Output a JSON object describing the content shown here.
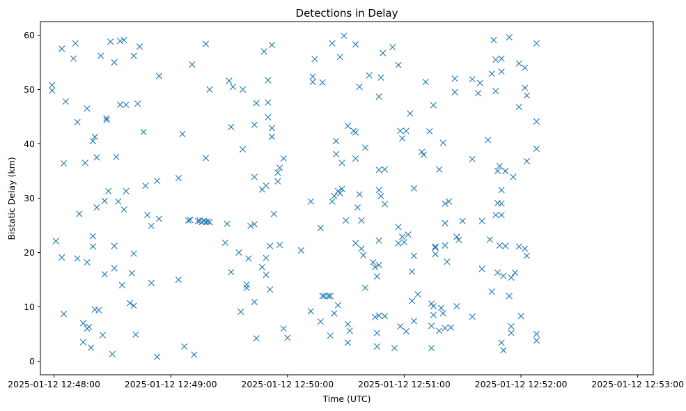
{
  "chart_data": {
    "type": "scatter",
    "title": "Detections in Delay",
    "xlabel": "Time (UTC)",
    "ylabel": "Bistatic Delay (km)",
    "xlim": [
      "2025-01-12 12:47:53",
      "2025-01-12 12:53:08"
    ],
    "ylim": [
      -2.5,
      62.5
    ],
    "xticks": [
      "2025-01-12 12:48:00",
      "2025-01-12 12:49:00",
      "2025-01-12 12:50:00",
      "2025-01-12 12:51:00",
      "2025-01-12 12:52:00",
      "2025-01-12 12:53:00"
    ],
    "yticks": [
      0,
      10,
      20,
      30,
      40,
      50,
      60
    ],
    "grid": false,
    "marker": "x",
    "color": "#1f77b4",
    "points": [
      [
        "2025-01-12 12:47:59",
        50.8
      ],
      [
        "2025-01-12 12:47:59",
        49.8
      ],
      [
        "2025-01-12 12:48:01",
        22.1
      ],
      [
        "2025-01-12 12:48:04",
        57.5
      ],
      [
        "2025-01-12 12:48:04",
        19.1
      ],
      [
        "2025-01-12 12:48:05",
        36.4
      ],
      [
        "2025-01-12 12:48:05",
        8.7
      ],
      [
        "2025-01-12 12:48:06",
        47.8
      ],
      [
        "2025-01-12 12:48:10",
        55.7
      ],
      [
        "2025-01-12 12:48:11",
        58.5
      ],
      [
        "2025-01-12 12:48:12",
        44.0
      ],
      [
        "2025-01-12 12:48:12",
        18.9
      ],
      [
        "2025-01-12 12:48:13",
        27.1
      ],
      [
        "2025-01-12 12:48:15",
        7.0
      ],
      [
        "2025-01-12 12:48:15",
        3.5
      ],
      [
        "2025-01-12 12:48:16",
        36.5
      ],
      [
        "2025-01-12 12:48:17",
        46.5
      ],
      [
        "2025-01-12 12:48:17",
        18.2
      ],
      [
        "2025-01-12 12:48:17",
        6.0
      ],
      [
        "2025-01-12 12:48:18",
        6.3
      ],
      [
        "2025-01-12 12:48:19",
        2.5
      ],
      [
        "2025-01-12 12:48:20",
        40.5
      ],
      [
        "2025-01-12 12:48:20",
        21.1
      ],
      [
        "2025-01-12 12:48:20",
        23.0
      ],
      [
        "2025-01-12 12:48:21",
        41.3
      ],
      [
        "2025-01-12 12:48:21",
        9.5
      ],
      [
        "2025-01-12 12:48:22",
        37.5
      ],
      [
        "2025-01-12 12:48:22",
        28.3
      ],
      [
        "2025-01-12 12:48:23",
        9.4
      ],
      [
        "2025-01-12 12:48:24",
        56.2
      ],
      [
        "2025-01-12 12:48:25",
        4.8
      ],
      [
        "2025-01-12 12:48:26",
        16.0
      ],
      [
        "2025-01-12 12:48:26",
        29.5
      ],
      [
        "2025-01-12 12:48:27",
        44.7
      ],
      [
        "2025-01-12 12:48:27",
        44.4
      ],
      [
        "2025-01-12 12:48:28",
        31.3
      ],
      [
        "2025-01-12 12:48:29",
        58.8
      ],
      [
        "2025-01-12 12:48:30",
        1.3
      ],
      [
        "2025-01-12 12:48:31",
        55.0
      ],
      [
        "2025-01-12 12:48:31",
        21.2
      ],
      [
        "2025-01-12 12:48:31",
        17.1
      ],
      [
        "2025-01-12 12:48:32",
        37.6
      ],
      [
        "2025-01-12 12:48:33",
        29.4
      ],
      [
        "2025-01-12 12:48:34",
        58.9
      ],
      [
        "2025-01-12 12:48:34",
        47.2
      ],
      [
        "2025-01-12 12:48:35",
        14.0
      ],
      [
        "2025-01-12 12:48:36",
        59.1
      ],
      [
        "2025-01-12 12:48:36",
        27.9
      ],
      [
        "2025-01-12 12:48:37",
        47.2
      ],
      [
        "2025-01-12 12:48:37",
        31.3
      ],
      [
        "2025-01-12 12:48:39",
        10.7
      ],
      [
        "2025-01-12 12:48:40",
        16.2
      ],
      [
        "2025-01-12 12:48:41",
        56.2
      ],
      [
        "2025-01-12 12:48:41",
        19.8
      ],
      [
        "2025-01-12 12:48:41",
        10.2
      ],
      [
        "2025-01-12 12:48:42",
        4.9
      ],
      [
        "2025-01-12 12:48:43",
        47.4
      ],
      [
        "2025-01-12 12:48:44",
        57.9
      ],
      [
        "2025-01-12 12:48:46",
        42.2
      ],
      [
        "2025-01-12 12:48:47",
        32.3
      ],
      [
        "2025-01-12 12:48:48",
        26.9
      ],
      [
        "2025-01-12 12:48:50",
        24.9
      ],
      [
        "2025-01-12 12:48:50",
        14.4
      ],
      [
        "2025-01-12 12:48:53",
        33.2
      ],
      [
        "2025-01-12 12:48:53",
        0.8
      ],
      [
        "2025-01-12 12:48:54",
        52.5
      ],
      [
        "2025-01-12 12:48:54",
        26.2
      ],
      [
        "2025-01-12 12:49:04",
        33.7
      ],
      [
        "2025-01-12 12:49:04",
        15.0
      ],
      [
        "2025-01-12 12:49:06",
        41.8
      ],
      [
        "2025-01-12 12:49:07",
        2.7
      ],
      [
        "2025-01-12 12:49:09",
        25.9
      ],
      [
        "2025-01-12 12:49:10",
        26.0
      ],
      [
        "2025-01-12 12:49:11",
        54.6
      ],
      [
        "2025-01-12 12:49:12",
        1.2
      ],
      [
        "2025-01-12 12:49:14",
        25.8
      ],
      [
        "2025-01-12 12:49:15",
        25.9
      ],
      [
        "2025-01-12 12:49:16",
        25.6
      ],
      [
        "2025-01-12 12:49:17",
        25.8
      ],
      [
        "2025-01-12 12:49:18",
        25.6
      ],
      [
        "2025-01-12 12:49:19",
        25.7
      ],
      [
        "2025-01-12 12:49:20",
        25.6
      ],
      [
        "2025-01-12 12:49:18",
        58.4
      ],
      [
        "2025-01-12 12:49:18",
        37.4
      ],
      [
        "2025-01-12 12:49:20",
        50.0
      ],
      [
        "2025-01-12 12:49:28",
        21.8
      ],
      [
        "2025-01-12 12:49:29",
        25.3
      ],
      [
        "2025-01-12 12:49:30",
        51.6
      ],
      [
        "2025-01-12 12:49:31",
        43.1
      ],
      [
        "2025-01-12 12:49:31",
        16.4
      ],
      [
        "2025-01-12 12:49:32",
        50.5
      ],
      [
        "2025-01-12 12:49:35",
        20.0
      ],
      [
        "2025-01-12 12:49:36",
        9.1
      ],
      [
        "2025-01-12 12:49:37",
        50.0
      ],
      [
        "2025-01-12 12:49:37",
        39.0
      ],
      [
        "2025-01-12 12:49:39",
        14.1
      ],
      [
        "2025-01-12 12:49:39",
        13.5
      ],
      [
        "2025-01-12 12:49:40",
        18.9
      ],
      [
        "2025-01-12 12:49:41",
        24.9
      ],
      [
        "2025-01-12 12:49:43",
        43.5
      ],
      [
        "2025-01-12 12:49:43",
        33.9
      ],
      [
        "2025-01-12 12:49:43",
        25.2
      ],
      [
        "2025-01-12 12:49:43",
        10.9
      ],
      [
        "2025-01-12 12:49:44",
        47.5
      ],
      [
        "2025-01-12 12:49:44",
        4.2
      ],
      [
        "2025-01-12 12:49:47",
        31.6
      ],
      [
        "2025-01-12 12:49:47",
        17.3
      ],
      [
        "2025-01-12 12:49:48",
        57.0
      ],
      [
        "2025-01-12 12:49:49",
        32.3
      ],
      [
        "2025-01-12 12:49:49",
        19.0
      ],
      [
        "2025-01-12 12:49:49",
        15.9
      ],
      [
        "2025-01-12 12:49:50",
        51.7
      ],
      [
        "2025-01-12 12:49:50",
        47.6
      ],
      [
        "2025-01-12 12:49:50",
        44.9
      ],
      [
        "2025-01-12 12:49:51",
        21.2
      ],
      [
        "2025-01-12 12:49:51",
        13.2
      ],
      [
        "2025-01-12 12:49:52",
        58.2
      ],
      [
        "2025-01-12 12:49:52",
        42.9
      ],
      [
        "2025-01-12 12:49:52",
        41.3
      ],
      [
        "2025-01-12 12:49:53",
        27.1
      ],
      [
        "2025-01-12 12:49:55",
        34.7
      ],
      [
        "2025-01-12 12:49:55",
        33.1
      ],
      [
        "2025-01-12 12:49:56",
        35.6
      ],
      [
        "2025-01-12 12:49:56",
        21.4
      ],
      [
        "2025-01-12 12:49:58",
        6.0
      ],
      [
        "2025-01-12 12:49:58",
        37.3
      ],
      [
        "2025-01-12 12:50:00",
        4.3
      ],
      [
        "2025-01-12 12:50:07",
        20.4
      ],
      [
        "2025-01-12 12:50:12",
        29.4
      ],
      [
        "2025-01-12 12:50:12",
        9.2
      ],
      [
        "2025-01-12 12:50:13",
        52.4
      ],
      [
        "2025-01-12 12:50:13",
        51.4
      ],
      [
        "2025-01-12 12:50:14",
        55.6
      ],
      [
        "2025-01-12 12:50:17",
        24.5
      ],
      [
        "2025-01-12 12:50:17",
        7.3
      ],
      [
        "2025-01-12 12:50:18",
        51.3
      ],
      [
        "2025-01-12 12:50:18",
        12.0
      ],
      [
        "2025-01-12 12:50:19",
        12.0
      ],
      [
        "2025-01-12 12:50:21",
        12.0
      ],
      [
        "2025-01-12 12:50:22",
        12.0
      ],
      [
        "2025-01-12 12:50:22",
        4.7
      ],
      [
        "2025-01-12 12:50:23",
        58.5
      ],
      [
        "2025-01-12 12:50:23",
        29.4
      ],
      [
        "2025-01-12 12:50:24",
        30.4
      ],
      [
        "2025-01-12 12:50:24",
        8.8
      ],
      [
        "2025-01-12 12:50:25",
        40.5
      ],
      [
        "2025-01-12 12:50:25",
        38.1
      ],
      [
        "2025-01-12 12:50:26",
        31.3
      ],
      [
        "2025-01-12 12:50:26",
        10.3
      ],
      [
        "2025-01-12 12:50:27",
        56.0
      ],
      [
        "2025-01-12 12:50:27",
        30.9
      ],
      [
        "2025-01-12 12:50:28",
        36.5
      ],
      [
        "2025-01-12 12:50:28",
        31.7
      ],
      [
        "2025-01-12 12:50:29",
        59.9
      ],
      [
        "2025-01-12 12:50:30",
        25.9
      ],
      [
        "2025-01-12 12:50:31",
        43.3
      ],
      [
        "2025-01-12 12:50:31",
        6.8
      ],
      [
        "2025-01-12 12:50:31",
        3.4
      ],
      [
        "2025-01-12 12:50:32",
        5.6
      ],
      [
        "2025-01-12 12:50:34",
        42.4
      ],
      [
        "2025-01-12 12:50:35",
        58.3
      ],
      [
        "2025-01-12 12:50:35",
        42.1
      ],
      [
        "2025-01-12 12:50:35",
        21.7
      ],
      [
        "2025-01-12 12:50:35",
        37.3
      ],
      [
        "2025-01-12 12:50:36",
        28.3
      ],
      [
        "2025-01-12 12:50:37",
        50.5
      ],
      [
        "2025-01-12 12:50:37",
        30.7
      ],
      [
        "2025-01-12 12:50:38",
        25.9
      ],
      [
        "2025-01-12 12:50:38",
        20.7
      ],
      [
        "2025-01-12 12:50:39",
        19.5
      ],
      [
        "2025-01-12 12:50:40",
        39.3
      ],
      [
        "2025-01-12 12:50:40",
        13.5
      ],
      [
        "2025-01-12 12:50:42",
        52.6
      ],
      [
        "2025-01-12 12:50:44",
        18.2
      ],
      [
        "2025-01-12 12:50:45",
        17.3
      ],
      [
        "2025-01-12 12:50:45",
        8.1
      ],
      [
        "2025-01-12 12:50:46",
        2.7
      ],
      [
        "2025-01-12 12:50:46",
        5.2
      ],
      [
        "2025-01-12 12:50:46",
        15.6
      ],
      [
        "2025-01-12 12:50:47",
        48.7
      ],
      [
        "2025-01-12 12:50:47",
        35.2
      ],
      [
        "2025-01-12 12:50:47",
        31.5
      ],
      [
        "2025-01-12 12:50:47",
        22.2
      ],
      [
        "2025-01-12 12:50:47",
        17.7
      ],
      [
        "2025-01-12 12:50:47",
        8.4
      ],
      [
        "2025-01-12 12:50:48",
        52.2
      ],
      [
        "2025-01-12 12:50:48",
        30.4
      ],
      [
        "2025-01-12 12:50:49",
        56.7
      ],
      [
        "2025-01-12 12:50:50",
        35.3
      ],
      [
        "2025-01-12 12:50:50",
        28.9
      ],
      [
        "2025-01-12 12:50:50",
        8.3
      ],
      [
        "2025-01-12 12:50:54",
        57.8
      ],
      [
        "2025-01-12 12:50:55",
        2.4
      ],
      [
        "2025-01-12 12:50:57",
        54.5
      ],
      [
        "2025-01-12 12:50:57",
        24.7
      ],
      [
        "2025-01-12 12:50:57",
        21.7
      ],
      [
        "2025-01-12 12:50:58",
        42.4
      ],
      [
        "2025-01-12 12:50:58",
        6.4
      ],
      [
        "2025-01-12 12:50:59",
        41.0
      ],
      [
        "2025-01-12 12:50:59",
        22.9
      ],
      [
        "2025-01-12 12:51:00",
        21.9
      ],
      [
        "2025-01-12 12:51:01",
        42.4
      ],
      [
        "2025-01-12 12:51:01",
        5.5
      ],
      [
        "2025-01-12 12:51:02",
        23.3
      ],
      [
        "2025-01-12 12:51:03",
        45.6
      ],
      [
        "2025-01-12 12:51:04",
        16.5
      ],
      [
        "2025-01-12 12:51:04",
        11.1
      ],
      [
        "2025-01-12 12:51:05",
        31.8
      ],
      [
        "2025-01-12 12:51:05",
        19.4
      ],
      [
        "2025-01-12 12:51:05",
        7.4
      ],
      [
        "2025-01-12 12:51:07",
        12.3
      ],
      [
        "2025-01-12 12:51:09",
        38.5
      ],
      [
        "2025-01-12 12:51:10",
        38.0
      ],
      [
        "2025-01-12 12:51:11",
        51.4
      ],
      [
        "2025-01-12 12:51:13",
        42.3
      ],
      [
        "2025-01-12 12:51:14",
        6.5
      ],
      [
        "2025-01-12 12:51:14",
        2.4
      ],
      [
        "2025-01-12 12:51:14",
        10.6
      ],
      [
        "2025-01-12 12:51:15",
        47.1
      ],
      [
        "2025-01-12 12:51:15",
        10.1
      ],
      [
        "2025-01-12 12:51:15",
        8.5
      ],
      [
        "2025-01-12 12:51:16",
        21.1
      ],
      [
        "2025-01-12 12:51:16",
        19.7
      ],
      [
        "2025-01-12 12:51:16",
        20.9
      ],
      [
        "2025-01-12 12:51:18",
        35.3
      ],
      [
        "2025-01-12 12:51:18",
        5.6
      ],
      [
        "2025-01-12 12:51:19",
        9.8
      ],
      [
        "2025-01-12 12:51:20",
        40.2
      ],
      [
        "2025-01-12 12:51:20",
        8.8
      ],
      [
        "2025-01-12 12:51:21",
        6.1
      ],
      [
        "2025-01-12 12:51:21",
        29.0
      ],
      [
        "2025-01-12 12:51:21",
        25.4
      ],
      [
        "2025-01-12 12:51:21",
        21.3
      ],
      [
        "2025-01-12 12:51:22",
        18.3
      ],
      [
        "2025-01-12 12:51:23",
        29.4
      ],
      [
        "2025-01-12 12:51:24",
        6.2
      ],
      [
        "2025-01-12 12:51:26",
        52.0
      ],
      [
        "2025-01-12 12:51:26",
        49.5
      ],
      [
        "2025-01-12 12:51:27",
        22.9
      ],
      [
        "2025-01-12 12:51:27",
        10.1
      ],
      [
        "2025-01-12 12:51:28",
        22.3
      ],
      [
        "2025-01-12 12:51:30",
        25.8
      ],
      [
        "2025-01-12 12:51:35",
        51.9
      ],
      [
        "2025-01-12 12:51:35",
        37.2
      ],
      [
        "2025-01-12 12:51:35",
        8.2
      ],
      [
        "2025-01-12 12:51:38",
        49.3
      ],
      [
        "2025-01-12 12:51:39",
        51.2
      ],
      [
        "2025-01-12 12:51:40",
        25.8
      ],
      [
        "2025-01-12 12:51:40",
        17.0
      ],
      [
        "2025-01-12 12:51:43",
        40.7
      ],
      [
        "2025-01-12 12:51:44",
        22.4
      ],
      [
        "2025-01-12 12:51:45",
        52.9
      ],
      [
        "2025-01-12 12:51:45",
        12.8
      ],
      [
        "2025-01-12 12:51:46",
        59.1
      ],
      [
        "2025-01-12 12:51:47",
        55.5
      ],
      [
        "2025-01-12 12:51:47",
        49.7
      ],
      [
        "2025-01-12 12:51:47",
        26.9
      ],
      [
        "2025-01-12 12:51:48",
        35.0
      ],
      [
        "2025-01-12 12:51:48",
        29.1
      ],
      [
        "2025-01-12 12:51:48",
        16.3
      ],
      [
        "2025-01-12 12:51:49",
        35.9
      ],
      [
        "2025-01-12 12:51:49",
        21.3
      ],
      [
        "2025-01-12 12:51:50",
        55.7
      ],
      [
        "2025-01-12 12:51:50",
        53.3
      ],
      [
        "2025-01-12 12:51:50",
        31.5
      ],
      [
        "2025-01-12 12:51:50",
        29.0
      ],
      [
        "2025-01-12 12:51:50",
        26.9
      ],
      [
        "2025-01-12 12:51:50",
        3.4
      ],
      [
        "2025-01-12 12:51:51",
        2.0
      ],
      [
        "2025-01-12 12:51:51",
        15.7
      ],
      [
        "2025-01-12 12:51:52",
        35.0
      ],
      [
        "2025-01-12 12:51:52",
        21.2
      ],
      [
        "2025-01-12 12:51:54",
        59.6
      ],
      [
        "2025-01-12 12:51:54",
        12.0
      ],
      [
        "2025-01-12 12:51:55",
        15.4
      ],
      [
        "2025-01-12 12:51:55",
        6.4
      ],
      [
        "2025-01-12 12:51:55",
        5.2
      ],
      [
        "2025-01-12 12:51:56",
        33.9
      ],
      [
        "2025-01-12 12:51:57",
        16.3
      ],
      [
        "2025-01-12 12:51:59",
        54.8
      ],
      [
        "2025-01-12 12:51:59",
        46.8
      ],
      [
        "2025-01-12 12:51:59",
        21.1
      ],
      [
        "2025-01-12 12:52:00",
        8.3
      ],
      [
        "2025-01-12 12:52:02",
        54.0
      ],
      [
        "2025-01-12 12:52:02",
        50.3
      ],
      [
        "2025-01-12 12:52:02",
        20.7
      ],
      [
        "2025-01-12 12:52:03",
        48.9
      ],
      [
        "2025-01-12 12:52:03",
        36.8
      ],
      [
        "2025-01-12 12:52:03",
        19.4
      ],
      [
        "2025-01-12 12:52:08",
        58.5
      ],
      [
        "2025-01-12 12:52:08",
        44.1
      ],
      [
        "2025-01-12 12:52:08",
        39.1
      ],
      [
        "2025-01-12 12:52:08",
        5.0
      ],
      [
        "2025-01-12 12:52:08",
        3.8
      ]
    ]
  }
}
